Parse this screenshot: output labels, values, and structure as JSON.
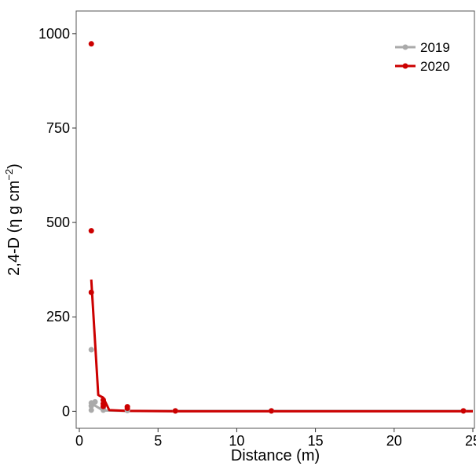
{
  "chart_data": {
    "type": "scatter",
    "title": "",
    "xlabel": "Distance (m)",
    "ylabel_main": "2,4-D (η g cm",
    "ylabel_sup": "−2",
    "ylabel_close": ")",
    "xlim": [
      -0.2,
      25.1
    ],
    "ylim": [
      -45,
      1060
    ],
    "xticks": [
      0,
      5,
      10,
      15,
      20,
      25
    ],
    "yticks": [
      0,
      250,
      500,
      750,
      1000
    ],
    "xtick_labels": [
      "0",
      "5",
      "10",
      "15",
      "20",
      "25"
    ],
    "ytick_labels": [
      "0",
      "250",
      "500",
      "750",
      "1000"
    ],
    "grid": false,
    "legend_position": "top-right",
    "series": [
      {
        "name": "2019",
        "color": "#aaaaaa",
        "points": [
          {
            "x": 0.76,
            "y": 3
          },
          {
            "x": 0.76,
            "y": 14
          },
          {
            "x": 0.76,
            "y": 22
          },
          {
            "x": 0.76,
            "y": 163
          },
          {
            "x": 1.0,
            "y": 25
          },
          {
            "x": 1.52,
            "y": 3
          },
          {
            "x": 1.52,
            "y": 8
          },
          {
            "x": 3.05,
            "y": 2
          },
          {
            "x": 6.1,
            "y": 1
          },
          {
            "x": 12.2,
            "y": 1
          },
          {
            "x": 24.4,
            "y": 1
          }
        ],
        "line": [
          {
            "x": 0.76,
            "y": 20
          },
          {
            "x": 1.0,
            "y": 15
          },
          {
            "x": 1.52,
            "y": 2
          },
          {
            "x": 3.05,
            "y": 1
          },
          {
            "x": 6.1,
            "y": 1
          },
          {
            "x": 12.2,
            "y": 1
          },
          {
            "x": 24.4,
            "y": 1
          },
          {
            "x": 25.0,
            "y": 1
          }
        ]
      },
      {
        "name": "2020",
        "color": "#cc0000",
        "points": [
          {
            "x": 0.76,
            "y": 973
          },
          {
            "x": 0.76,
            "y": 478
          },
          {
            "x": 0.76,
            "y": 315
          },
          {
            "x": 1.52,
            "y": 30
          },
          {
            "x": 1.52,
            "y": 20
          },
          {
            "x": 1.52,
            "y": 13
          },
          {
            "x": 3.05,
            "y": 12
          },
          {
            "x": 3.05,
            "y": 8
          },
          {
            "x": 6.1,
            "y": 1
          },
          {
            "x": 12.2,
            "y": 1
          },
          {
            "x": 24.4,
            "y": 1
          }
        ],
        "line": [
          {
            "x": 0.76,
            "y": 349
          },
          {
            "x": 1.2,
            "y": 43
          },
          {
            "x": 1.52,
            "y": 36
          },
          {
            "x": 1.9,
            "y": 3
          },
          {
            "x": 3.05,
            "y": 1
          },
          {
            "x": 6.1,
            "y": 0
          },
          {
            "x": 12.2,
            "y": 0
          },
          {
            "x": 24.4,
            "y": 0
          },
          {
            "x": 25.0,
            "y": 0
          }
        ]
      }
    ]
  }
}
